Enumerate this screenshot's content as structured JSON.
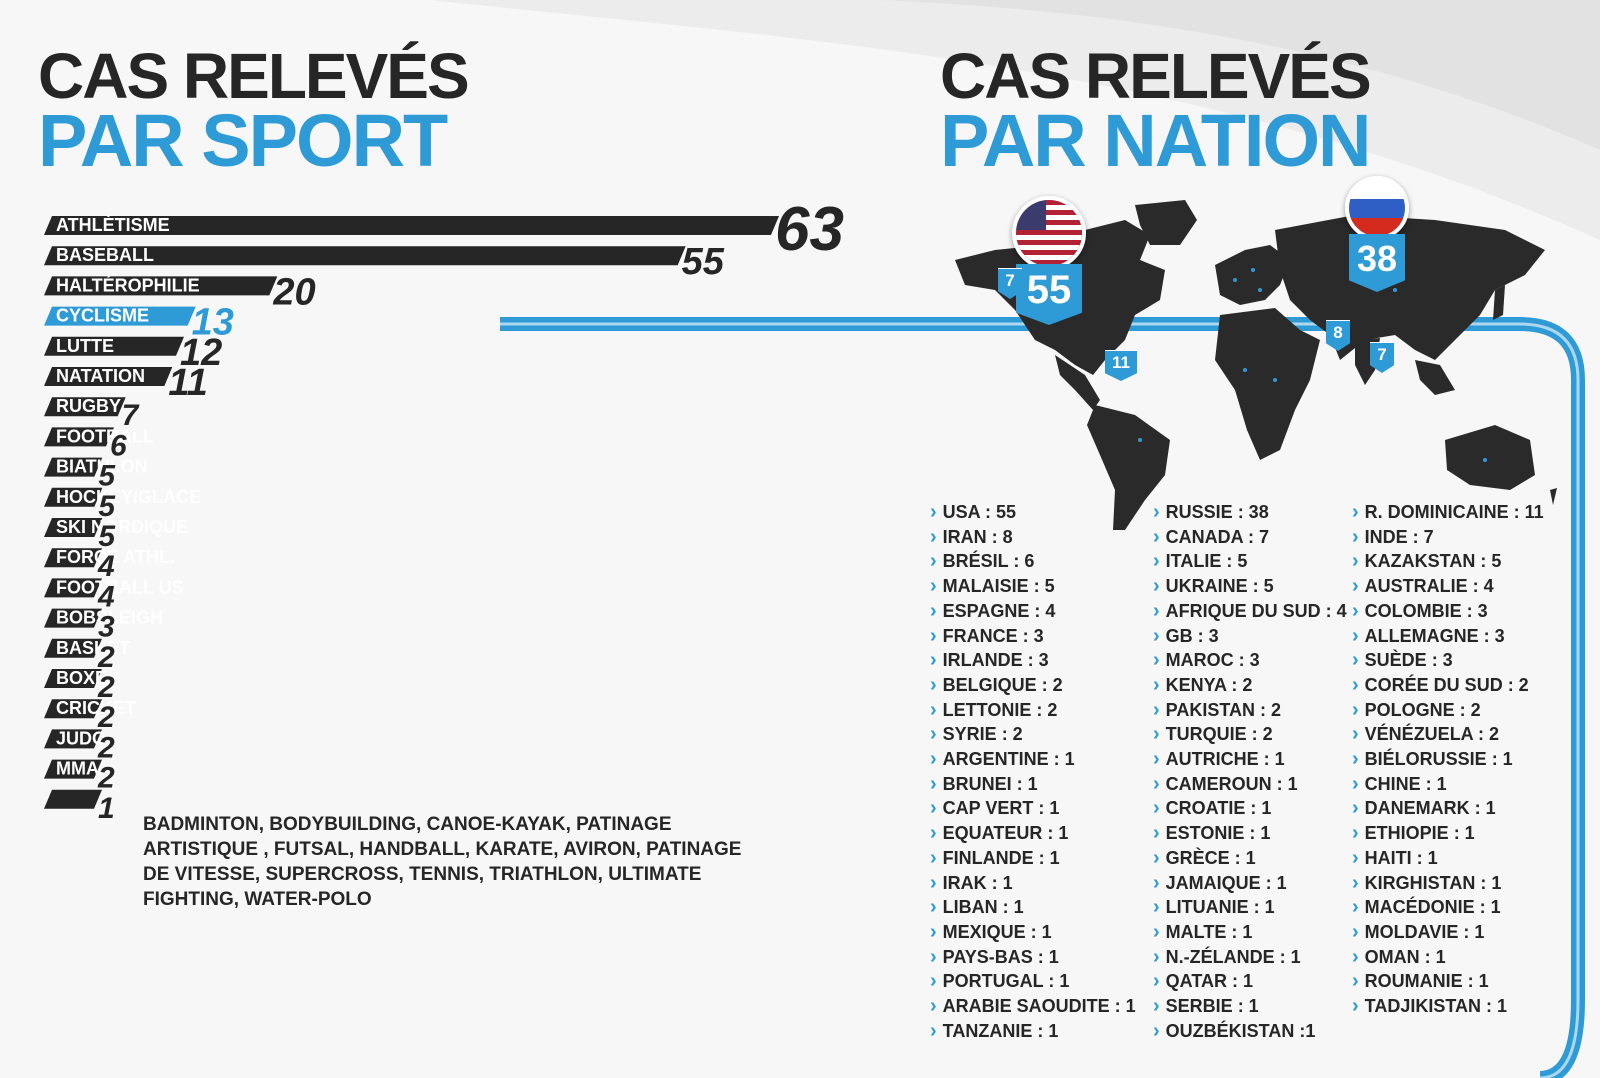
{
  "titles": {
    "sport_line1": "CAS RELEVÉS",
    "sport_line2": "PAR SPORT",
    "nation_line1": "CAS RELEVÉS",
    "nation_line2": "PAR NATION"
  },
  "colors": {
    "accent": "#2f9bd6",
    "dark": "#262626",
    "background": "#f7f7f7"
  },
  "chart_data": {
    "type": "bar",
    "orientation": "horizontal",
    "categories": [
      "ATHLÉTISME",
      "BASEBALL",
      "HALTÉROPHILIE",
      "CYCLISME",
      "LUTTE",
      "NATATION",
      "RUGBY",
      "FOOTBALL",
      "BIATHLON",
      "HOCKEY/GLACE",
      "SKI NORDIQUE",
      "FORCE ATHL.",
      "FOOTBALL US",
      "BOBSLEIGH",
      "BASKET",
      "BOXE",
      "CRICKET",
      "JUDO",
      "MMA",
      ""
    ],
    "values": [
      63,
      55,
      20,
      13,
      12,
      11,
      7,
      6,
      5,
      5,
      5,
      4,
      4,
      3,
      2,
      2,
      2,
      2,
      2,
      1
    ],
    "highlighted": "CYCLISME",
    "others_label": "BADMINTON, BODYBUILDING, CANOE-KAYAK, PATINAGE ARTISTIQUE , FUTSAL, HANDBALL, KARATE, AVIRON, PATINAGE DE VITESSE, SUPERCROSS, TENNIS, TRIATHLON, ULTIMATE FIGHTING, WATER-POLO"
  },
  "map": {
    "markers": [
      {
        "country": "USA",
        "value": "55",
        "icon": "usa-flag-icon"
      },
      {
        "country": "RUSSIE",
        "value": "38",
        "icon": "russia-flag-icon"
      },
      {
        "country": "CANADA",
        "value": "7"
      },
      {
        "country": "R. DOMINICAINE",
        "value": "11"
      },
      {
        "country": "IRAN",
        "value": "8"
      },
      {
        "country": "INDE",
        "value": "7"
      }
    ]
  },
  "nations": [
    [
      "USA : 55",
      "IRAN : 8",
      "BRÉSIL : 6",
      "MALAISIE : 5",
      "ESPAGNE : 4",
      "FRANCE : 3",
      "IRLANDE : 3",
      "BELGIQUE : 2",
      "LETTONIE : 2",
      "SYRIE : 2",
      "ARGENTINE : 1",
      "BRUNEI : 1",
      "CAP VERT : 1",
      "EQUATEUR : 1",
      "FINLANDE : 1",
      "IRAK : 1",
      "LIBAN : 1",
      "MEXIQUE : 1",
      "PAYS-BAS : 1",
      "PORTUGAL : 1",
      "ARABIE SAOUDITE : 1",
      "TANZANIE : 1"
    ],
    [
      "RUSSIE : 38",
      "CANADA : 7",
      "ITALIE : 5",
      "UKRAINE : 5",
      "AFRIQUE DU SUD : 4",
      "GB : 3",
      "MAROC : 3",
      "KENYA : 2",
      "PAKISTAN : 2",
      "TURQUIE : 2",
      "AUTRICHE : 1",
      "CAMEROUN : 1",
      "CROATIE : 1",
      "ESTONIE : 1",
      "GRÈCE : 1",
      "JAMAIQUE : 1",
      "LITUANIE : 1",
      "MALTE : 1",
      "N.-ZÉLANDE : 1",
      "QATAR : 1",
      "SERBIE : 1",
      "OUZBÉKISTAN :1"
    ],
    [
      "R. DOMINICAINE : 11",
      "INDE : 7",
      "KAZAKSTAN : 5",
      "AUSTRALIE : 4",
      "COLOMBIE : 3",
      "ALLEMAGNE : 3",
      "SUÈDE : 3",
      "CORÉE DU SUD : 2",
      "POLOGNE : 2",
      "VÉNÉZUELA : 2",
      "BIÉLORUSSIE : 1",
      "CHINE : 1",
      "DANEMARK : 1",
      "ETHIOPIE : 1",
      "HAITI : 1",
      "KIRGHISTAN : 1",
      "MACÉDONIE : 1",
      "MOLDAVIE : 1",
      "OMAN : 1",
      "ROUMANIE : 1",
      "TADJIKISTAN : 1"
    ]
  ]
}
